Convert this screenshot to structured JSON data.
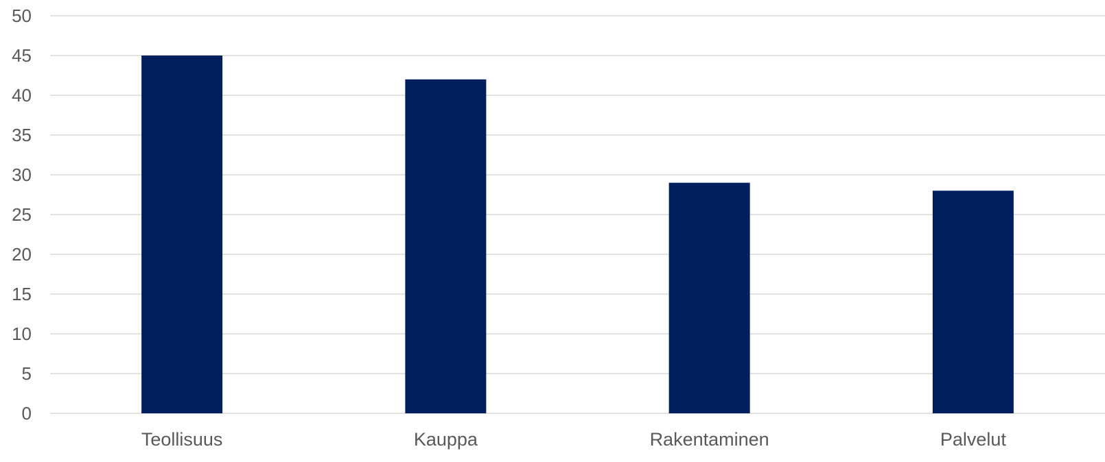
{
  "chart_data": {
    "type": "bar",
    "title": "",
    "xlabel": "",
    "ylabel": "",
    "categories": [
      "Teollisuus",
      "Kauppa",
      "Rakentaminen",
      "Palvelut"
    ],
    "values": [
      45,
      42,
      29,
      28
    ],
    "ylim": [
      0,
      50
    ],
    "yticks": [
      0,
      5,
      10,
      15,
      20,
      25,
      30,
      35,
      40,
      45,
      50
    ],
    "grid": true,
    "legend": "none",
    "colors": {
      "bar": "#001f5f",
      "gridline": "#d9d9d9",
      "text": "#595959"
    }
  }
}
